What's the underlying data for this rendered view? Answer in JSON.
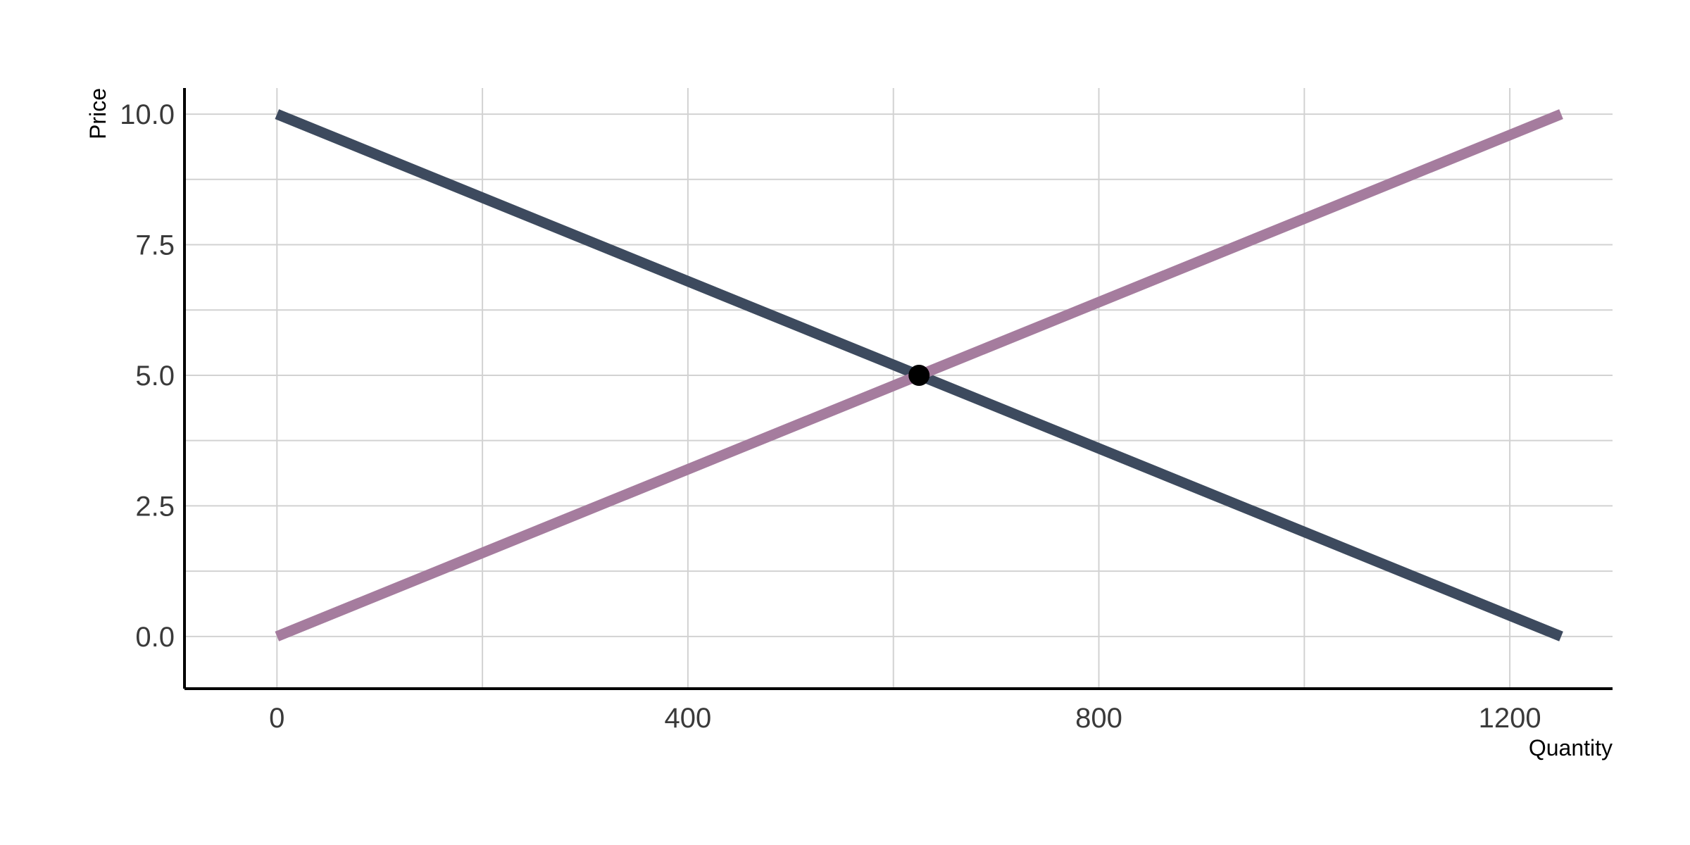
{
  "chart_data": {
    "type": "line",
    "title": "",
    "xlabel": "Quantity",
    "ylabel": "Price",
    "xlim": [
      -90,
      1300
    ],
    "ylim": [
      -1.0,
      10.5
    ],
    "x_ticks": [
      0,
      400,
      800,
      1200
    ],
    "x_tick_labels": [
      "0",
      "400",
      "800",
      "1200"
    ],
    "x_minor_grid": [
      200,
      600,
      1000
    ],
    "y_ticks": [
      0,
      2.5,
      5,
      7.5,
      10
    ],
    "y_tick_labels": [
      "0.0",
      "2.5",
      "5.0",
      "7.5",
      "10.0"
    ],
    "y_minor_grid": [
      1.25,
      3.75,
      6.25,
      8.75
    ],
    "grid": true,
    "legend": "none",
    "series": [
      {
        "x": [
          0,
          1250
        ],
        "y": [
          10,
          0
        ],
        "color": "#3d4a5e"
      },
      {
        "x": [
          0,
          1250
        ],
        "y": [
          0,
          10
        ],
        "color": "#a57c9e"
      }
    ],
    "points": [
      {
        "x": 625,
        "y": 5,
        "color": "#000000"
      }
    ]
  }
}
